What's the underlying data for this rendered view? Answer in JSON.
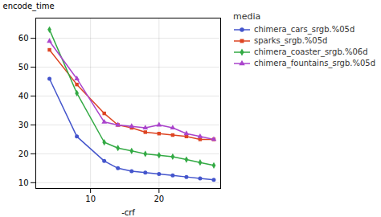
{
  "chart_data": {
    "type": "line",
    "xlabel": "-crf",
    "ylabel": "encode_time",
    "legend_title": "media",
    "legend": "right",
    "grid": true,
    "x": [
      4,
      8,
      12,
      14,
      16,
      18,
      20,
      22,
      24,
      26,
      28
    ],
    "series": [
      {
        "name": "chimera_cars_srgb.%05d",
        "color": "#4455cc",
        "marker": "circle",
        "values": [
          46,
          26,
          17.5,
          15,
          14,
          13.5,
          13,
          12.5,
          12,
          11.5,
          11
        ]
      },
      {
        "name": "sparks_srgb.%05d",
        "color": "#dd4422",
        "marker": "square",
        "values": [
          56,
          44,
          34,
          30,
          29,
          27.5,
          27,
          26.5,
          26,
          25,
          25
        ]
      },
      {
        "name": "chimera_coaster_srgb.%06d",
        "color": "#33aa44",
        "marker": "diamond",
        "values": [
          63,
          41,
          24,
          22,
          21,
          20,
          19.5,
          19,
          18,
          17,
          16
        ]
      },
      {
        "name": "chimera_fountains_srgb.%05d",
        "color": "#aa44cc",
        "marker": "triangle",
        "values": [
          59,
          46,
          31,
          30,
          29.5,
          29,
          30,
          29,
          27,
          26,
          25
        ]
      }
    ],
    "xlim": [
      2,
      29
    ],
    "ylim": [
      8,
      67
    ],
    "xticks": [
      10,
      20
    ],
    "yticks": [
      10,
      20,
      30,
      40,
      50,
      60
    ]
  }
}
